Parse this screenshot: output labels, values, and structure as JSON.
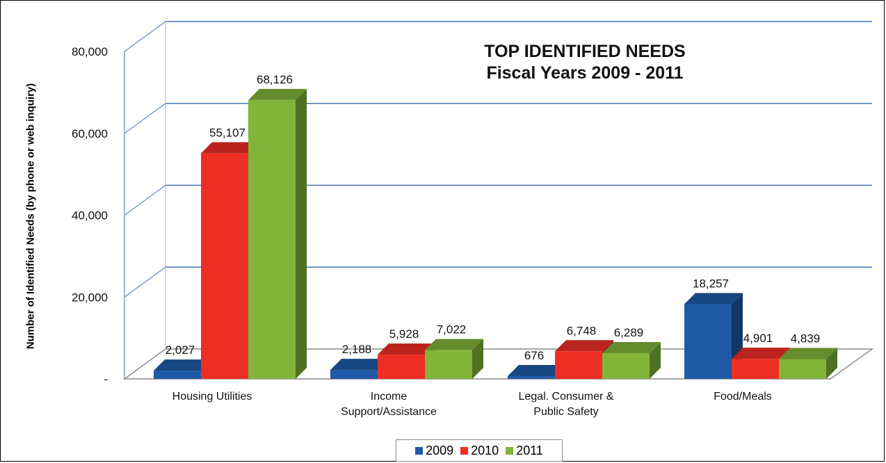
{
  "chart_data": {
    "type": "bar",
    "title": [
      "TOP IDENTIFIED NEEDS",
      "Fiscal Years 2009 - 2011"
    ],
    "xlabel": "",
    "ylabel": "Number of Identified Needs (by phone or web inquiry)",
    "ylim": [
      0,
      80000
    ],
    "yticks": [
      {
        "value": 0,
        "label": "-"
      },
      {
        "value": 20000,
        "label": "20,000"
      },
      {
        "value": 40000,
        "label": "40,000"
      },
      {
        "value": 60000,
        "label": "60,000"
      },
      {
        "value": 80000,
        "label": "80,000"
      }
    ],
    "categories": [
      [
        "Housing Utilities"
      ],
      [
        "Income",
        "Support/Assistance"
      ],
      [
        "Legal. Consumer &",
        "Public Safety"
      ],
      [
        "Food/Meals"
      ]
    ],
    "series": [
      {
        "name": "2009",
        "color": "#1f5aa6",
        "values": [
          2027,
          2188,
          676,
          18257
        ],
        "labels": [
          "2,027",
          "2,188",
          "676",
          "18,257"
        ]
      },
      {
        "name": "2010",
        "color": "#ee2e24",
        "values": [
          55107,
          5928,
          6748,
          4901
        ],
        "labels": [
          "55,107",
          "5,928",
          "6,748",
          "4,901"
        ]
      },
      {
        "name": "2011",
        "color": "#82b43a",
        "values": [
          68126,
          7022,
          6289,
          4839
        ],
        "labels": [
          "68,126",
          "7,022",
          "6,289",
          "4,839"
        ]
      }
    ],
    "gridlines": true,
    "legend_position": "bottom",
    "style": "3d-clustered-column"
  }
}
